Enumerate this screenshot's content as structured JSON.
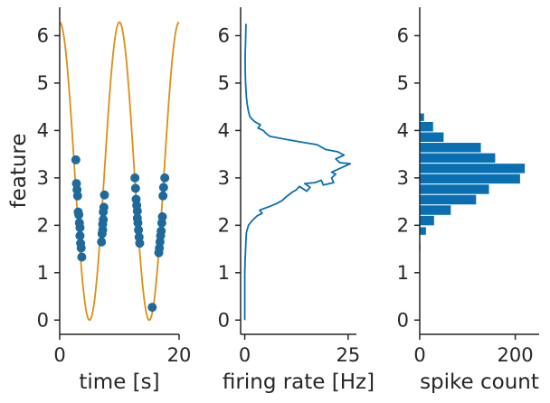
{
  "chart_data": [
    {
      "type": "scatter",
      "xlabel": "time [s]",
      "ylabel": "feature",
      "xlim": [
        0,
        20
      ],
      "ylim": [
        -0.3,
        6.6
      ],
      "xticks": [
        "0",
        "20"
      ],
      "xtick_values": [
        0,
        20
      ],
      "yticks": [
        "0",
        "1",
        "2",
        "3",
        "4",
        "5",
        "6"
      ],
      "ytick_values": [
        0,
        1,
        2,
        3,
        4,
        5,
        6
      ],
      "grid": false,
      "legend": "none",
      "series": [
        {
          "kind": "line",
          "color": "#dd8f12",
          "function": "pi * (1 + cos(2*pi*t/10))",
          "t_range": [
            0,
            20
          ]
        },
        {
          "kind": "points",
          "color": "#1f6a9b",
          "points": [
            [
              2.7,
              3.38
            ],
            [
              2.8,
              2.88
            ],
            [
              2.9,
              2.75
            ],
            [
              3.0,
              2.62
            ],
            [
              3.1,
              2.28
            ],
            [
              3.2,
              2.22
            ],
            [
              3.3,
              2.05
            ],
            [
              3.4,
              1.95
            ],
            [
              3.4,
              1.78
            ],
            [
              3.5,
              1.62
            ],
            [
              3.6,
              1.52
            ],
            [
              3.7,
              1.33
            ],
            [
              7.0,
              1.65
            ],
            [
              7.1,
              1.82
            ],
            [
              7.2,
              1.9
            ],
            [
              7.2,
              2.02
            ],
            [
              7.3,
              2.12
            ],
            [
              7.3,
              2.28
            ],
            [
              7.4,
              2.38
            ],
            [
              7.5,
              2.64
            ],
            [
              12.6,
              3.0
            ],
            [
              12.7,
              2.78
            ],
            [
              12.8,
              2.55
            ],
            [
              12.9,
              2.42
            ],
            [
              13.0,
              2.3
            ],
            [
              13.0,
              2.15
            ],
            [
              13.1,
              2.05
            ],
            [
              13.2,
              1.9
            ],
            [
              13.3,
              1.75
            ],
            [
              13.4,
              1.62
            ],
            [
              15.5,
              0.27
            ],
            [
              16.6,
              1.42
            ],
            [
              16.7,
              1.52
            ],
            [
              16.8,
              1.65
            ],
            [
              16.9,
              1.78
            ],
            [
              17.0,
              1.88
            ],
            [
              17.1,
              2.05
            ],
            [
              17.2,
              2.18
            ],
            [
              17.3,
              2.62
            ],
            [
              17.4,
              2.8
            ],
            [
              17.6,
              3.0
            ]
          ]
        }
      ]
    },
    {
      "type": "line",
      "xlabel": "firing rate [Hz]",
      "ylabel": "",
      "xlim": [
        -1,
        27
      ],
      "ylim": [
        -0.3,
        6.6
      ],
      "xticks": [
        "0",
        "25"
      ],
      "xtick_values": [
        0,
        25
      ],
      "yticks": [
        "0",
        "1",
        "2",
        "3",
        "4",
        "5",
        "6"
      ],
      "ytick_values": [
        0,
        1,
        2,
        3,
        4,
        5,
        6
      ],
      "grid": false,
      "legend": "none",
      "series": [
        {
          "color": "#0a6fb1",
          "points": [
            [
              0,
              0.0
            ],
            [
              0,
              1.0
            ],
            [
              0.1,
              1.3
            ],
            [
              0.2,
              1.5
            ],
            [
              0.3,
              1.7
            ],
            [
              0.4,
              1.85
            ],
            [
              0.9,
              2.0
            ],
            [
              1.8,
              2.1
            ],
            [
              3.0,
              2.2
            ],
            [
              4.2,
              2.25
            ],
            [
              3.6,
              2.32
            ],
            [
              5.5,
              2.38
            ],
            [
              7.5,
              2.45
            ],
            [
              9.0,
              2.52
            ],
            [
              10.0,
              2.6
            ],
            [
              11.5,
              2.7
            ],
            [
              12.5,
              2.75
            ],
            [
              13.2,
              2.82
            ],
            [
              15.0,
              2.72
            ],
            [
              15.8,
              2.8
            ],
            [
              14.5,
              2.88
            ],
            [
              17.0,
              2.9
            ],
            [
              18.5,
              2.95
            ],
            [
              19.0,
              2.85
            ],
            [
              21.5,
              2.9
            ],
            [
              21.0,
              3.0
            ],
            [
              22.0,
              3.08
            ],
            [
              21.0,
              3.12
            ],
            [
              23.5,
              3.22
            ],
            [
              25.5,
              3.3
            ],
            [
              23.0,
              3.32
            ],
            [
              22.0,
              3.4
            ],
            [
              24.0,
              3.48
            ],
            [
              22.5,
              3.55
            ],
            [
              19.5,
              3.6
            ],
            [
              17.5,
              3.7
            ],
            [
              14.0,
              3.75
            ],
            [
              9.5,
              3.82
            ],
            [
              6.0,
              3.88
            ],
            [
              5.0,
              3.95
            ],
            [
              4.5,
              4.0
            ],
            [
              3.2,
              4.05
            ],
            [
              3.8,
              4.12
            ],
            [
              2.5,
              4.18
            ],
            [
              1.6,
              4.25
            ],
            [
              1.2,
              4.3
            ],
            [
              0.9,
              4.4
            ],
            [
              0.6,
              4.55
            ],
            [
              0.4,
              4.7
            ],
            [
              0.2,
              5.0
            ],
            [
              0.1,
              5.3
            ],
            [
              0.1,
              5.6
            ],
            [
              0.2,
              5.9
            ],
            [
              0.3,
              6.25
            ]
          ]
        }
      ]
    },
    {
      "type": "bar",
      "orientation": "horizontal",
      "xlabel": "spike count",
      "ylabel": "",
      "xlim": [
        0,
        250
      ],
      "ylim": [
        -0.3,
        6.6
      ],
      "xticks": [
        "0",
        "200"
      ],
      "xtick_values": [
        0,
        200
      ],
      "yticks": [
        "0",
        "1",
        "2",
        "3",
        "4",
        "5",
        "6"
      ],
      "ytick_values": [
        0,
        1,
        2,
        3,
        4,
        5,
        6
      ],
      "grid": false,
      "legend": "none",
      "bar_color": "#0a6fb1",
      "bins": [
        {
          "y0": 1.46,
          "y1": 1.62,
          "count": 1
        },
        {
          "y0": 1.8,
          "y1": 1.96,
          "count": 13
        },
        {
          "y0": 2.0,
          "y1": 2.2,
          "count": 30
        },
        {
          "y0": 2.22,
          "y1": 2.42,
          "count": 65
        },
        {
          "y0": 2.44,
          "y1": 2.64,
          "count": 118
        },
        {
          "y0": 2.66,
          "y1": 2.86,
          "count": 145
        },
        {
          "y0": 2.88,
          "y1": 3.08,
          "count": 210
        },
        {
          "y0": 3.1,
          "y1": 3.3,
          "count": 220
        },
        {
          "y0": 3.32,
          "y1": 3.52,
          "count": 158
        },
        {
          "y0": 3.54,
          "y1": 3.74,
          "count": 128
        },
        {
          "y0": 3.76,
          "y1": 3.96,
          "count": 50
        },
        {
          "y0": 3.98,
          "y1": 4.18,
          "count": 28
        },
        {
          "y0": 4.2,
          "y1": 4.36,
          "count": 9
        }
      ]
    }
  ]
}
